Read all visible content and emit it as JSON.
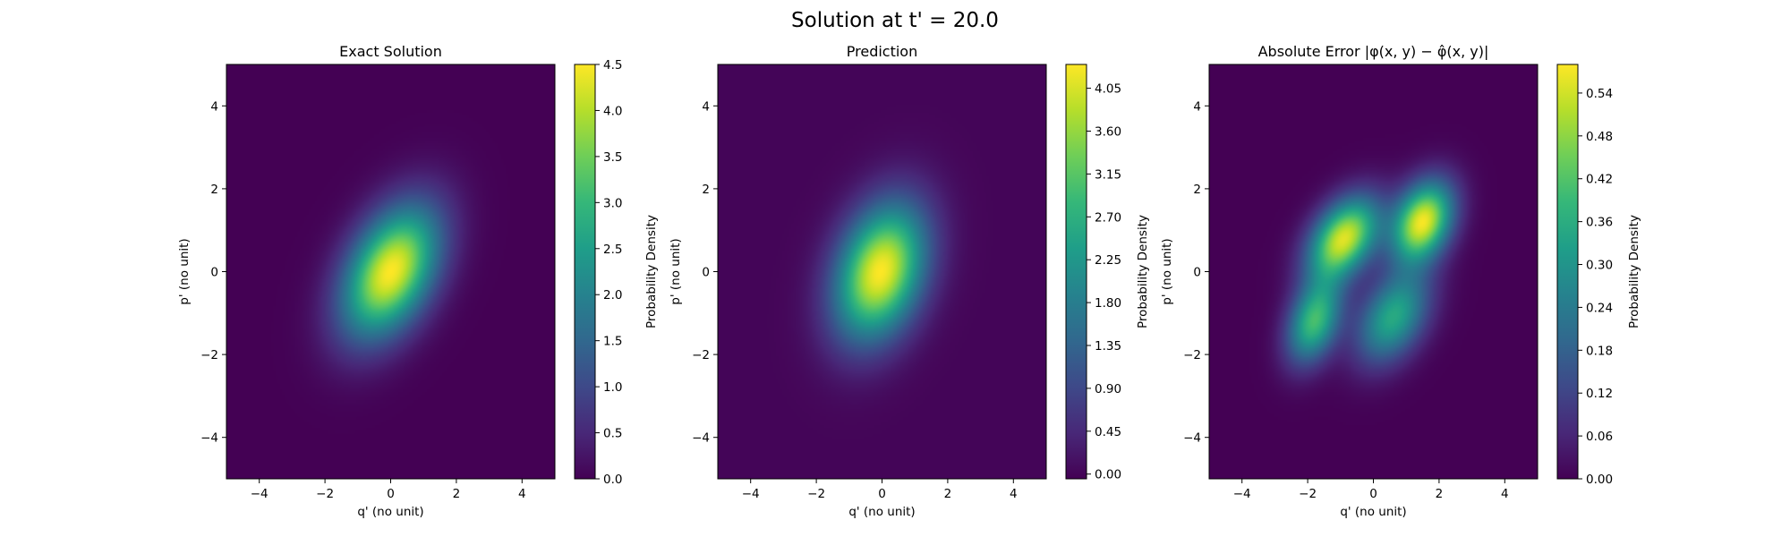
{
  "figure": {
    "title": "Solution at t' = 20.0"
  },
  "chart_data": [
    {
      "type": "heatmap",
      "title": "Exact Solution",
      "xlabel": "q' (no unit)",
      "ylabel": "p' (no unit)",
      "xlim": [
        -5,
        5
      ],
      "ylim": [
        -5,
        5
      ],
      "xticks": [
        "−4",
        "−2",
        "0",
        "2",
        "4"
      ],
      "yticks": [
        "−4",
        "−2",
        "0",
        "2",
        "4"
      ],
      "colormap": "viridis",
      "colorbar": {
        "label": "Probability Density",
        "range": [
          0,
          4.5
        ],
        "ticks": [
          "0.0",
          "0.5",
          "1.0",
          "1.5",
          "2.0",
          "2.5",
          "3.0",
          "3.5",
          "4.0",
          "4.5"
        ]
      },
      "features": [
        {
          "kind": "gaussian",
          "center": [
            0,
            0
          ],
          "sigma_major": 1.25,
          "sigma_minor": 0.8,
          "angle_deg": 50,
          "peak": 4.5
        }
      ]
    },
    {
      "type": "heatmap",
      "title": "Prediction",
      "xlabel": "q' (no unit)",
      "ylabel": "p' (no unit)",
      "xlim": [
        -5,
        5
      ],
      "ylim": [
        -5,
        5
      ],
      "xticks": [
        "−4",
        "−2",
        "0",
        "2",
        "4"
      ],
      "yticks": [
        "−4",
        "−2",
        "0",
        "2",
        "4"
      ],
      "colormap": "viridis",
      "colorbar": {
        "label": "Probability Density",
        "range": [
          -0.05,
          4.3
        ],
        "ticks": [
          "0.00",
          "0.45",
          "0.90",
          "1.35",
          "1.80",
          "2.25",
          "2.70",
          "3.15",
          "3.60",
          "4.05"
        ]
      },
      "features": [
        {
          "kind": "gaussian",
          "center": [
            -0.05,
            0
          ],
          "sigma_major": 1.2,
          "sigma_minor": 0.85,
          "angle_deg": 60,
          "peak": 4.3
        }
      ]
    },
    {
      "type": "heatmap",
      "title": "Absolute Error |φ(x, y) − φ̂(x, y)|",
      "xlabel": "q' (no unit)",
      "ylabel": "p' (no unit)",
      "xlim": [
        -5,
        5
      ],
      "ylim": [
        -5,
        5
      ],
      "xticks": [
        "−4",
        "−2",
        "0",
        "2",
        "4"
      ],
      "yticks": [
        "−4",
        "−2",
        "0",
        "2",
        "4"
      ],
      "colormap": "viridis",
      "colorbar": {
        "label": "Probability Density",
        "range": [
          0,
          0.58
        ],
        "ticks": [
          "0.00",
          "0.06",
          "0.12",
          "0.18",
          "0.24",
          "0.30",
          "0.36",
          "0.42",
          "0.48",
          "0.54"
        ]
      },
      "features": [
        {
          "kind": "gaussian",
          "center": [
            1.5,
            1.2
          ],
          "sigma_major": 0.75,
          "sigma_minor": 0.55,
          "angle_deg": 50,
          "peak": 0.57
        },
        {
          "kind": "gaussian",
          "center": [
            -0.9,
            0.8
          ],
          "sigma_major": 0.85,
          "sigma_minor": 0.55,
          "angle_deg": 40,
          "peak": 0.55
        },
        {
          "kind": "gaussian",
          "center": [
            -1.8,
            -1.2
          ],
          "sigma_major": 0.75,
          "sigma_minor": 0.5,
          "angle_deg": 60,
          "peak": 0.4
        },
        {
          "kind": "gaussian",
          "center": [
            0.6,
            -1.1
          ],
          "sigma_major": 0.9,
          "sigma_minor": 0.6,
          "angle_deg": 45,
          "peak": 0.35
        }
      ]
    }
  ]
}
